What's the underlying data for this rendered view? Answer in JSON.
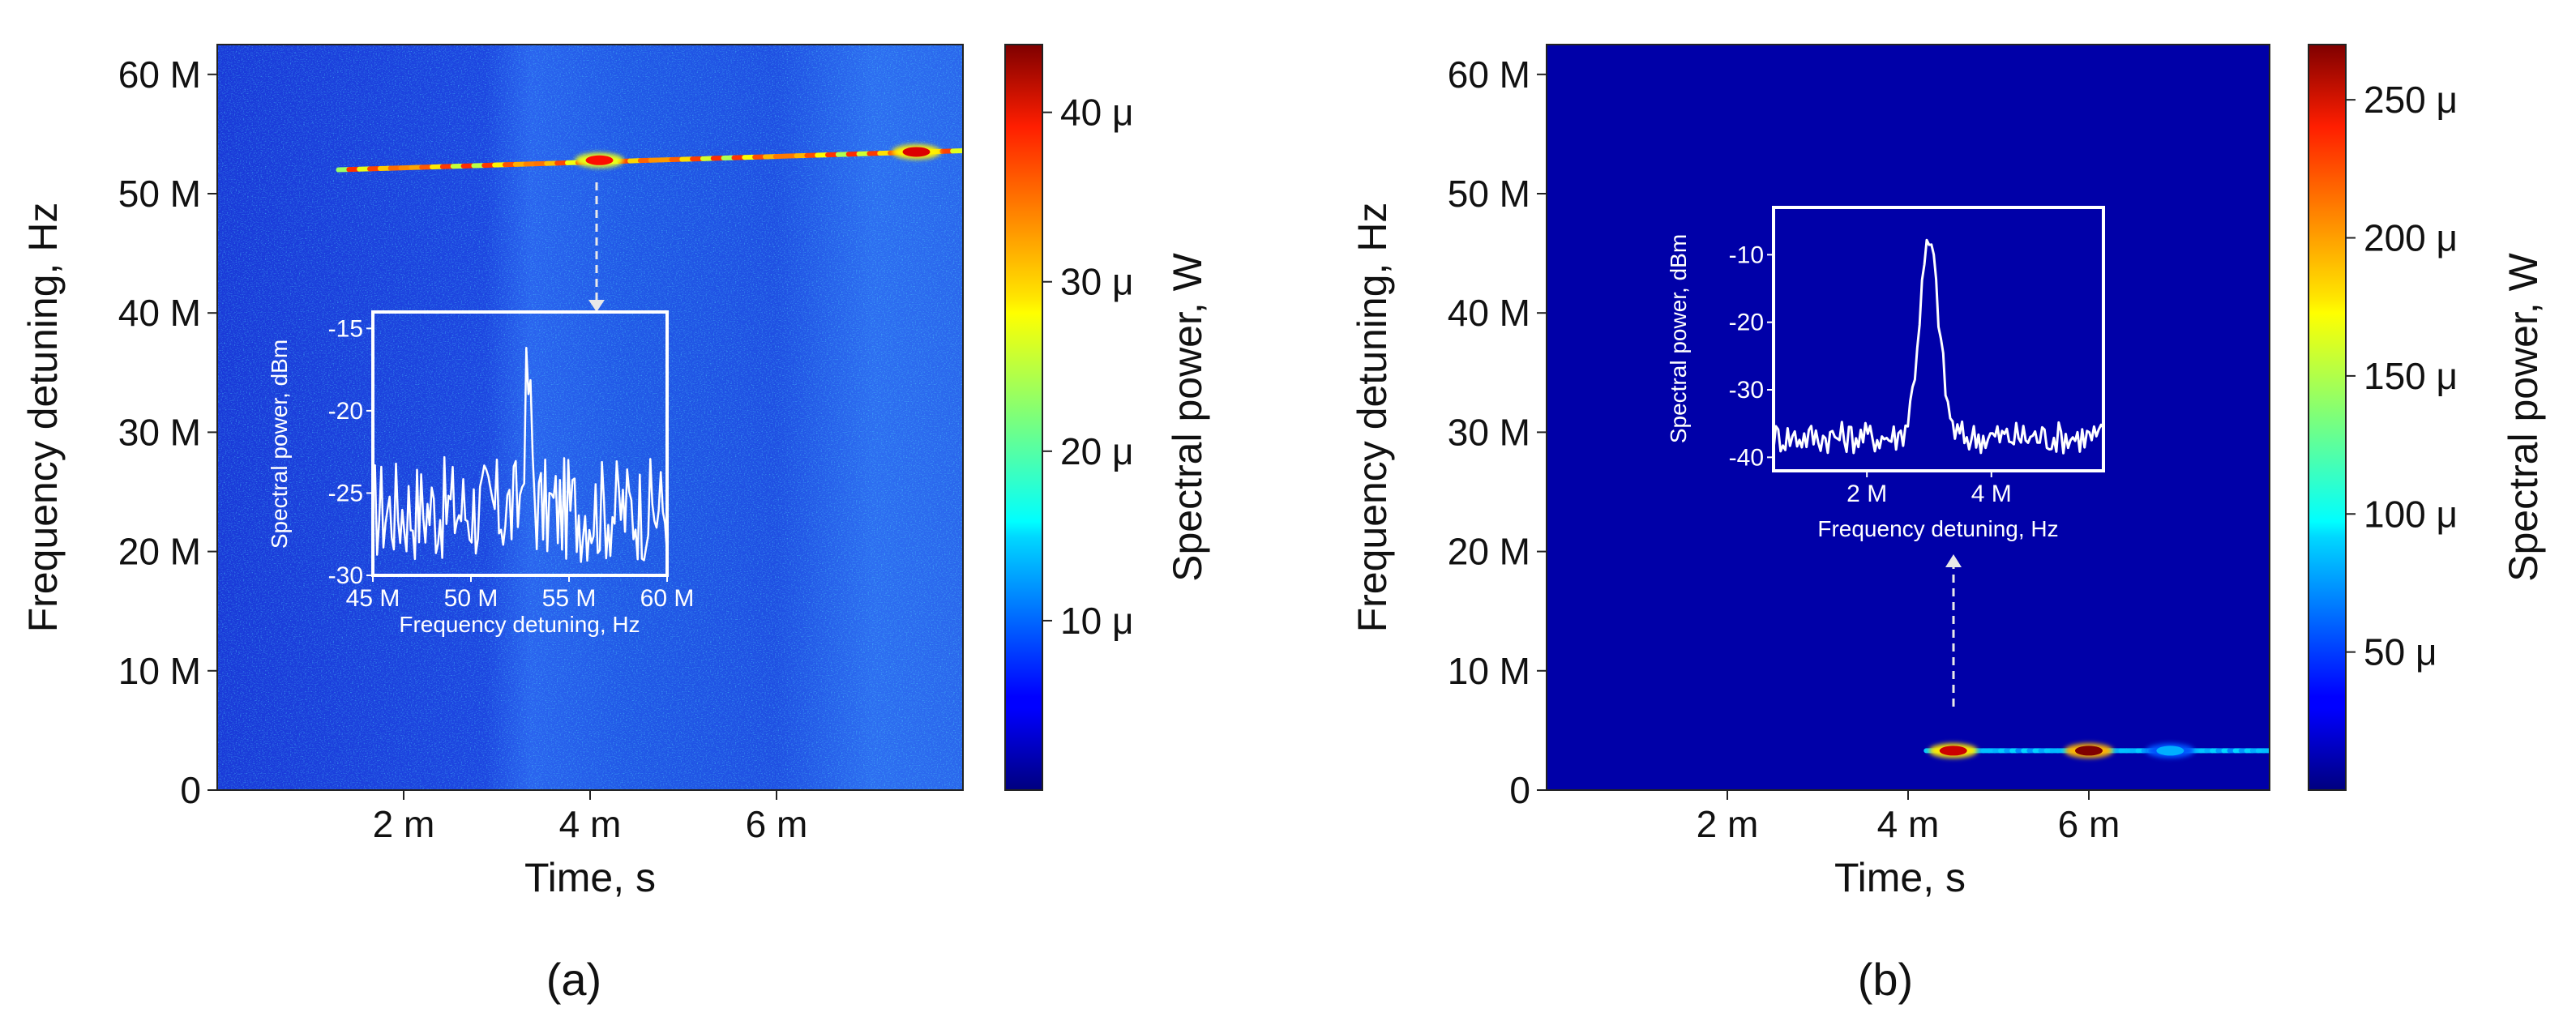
{
  "chart_data": [
    {
      "type": "heatmap",
      "panel_label": "(a)",
      "xlabel": "Time, s",
      "ylabel": "Frequency detuning, Hz",
      "colorbar_label": "Spectral power, W",
      "x_ticks": [
        "2 m",
        "4 m",
        "6 m"
      ],
      "x_tick_values": [
        0.002,
        0.004,
        0.006
      ],
      "xlim": [
        0,
        0.008
      ],
      "y_ticks": [
        "0",
        "10 M",
        "20 M",
        "30 M",
        "40 M",
        "50 M",
        "60 M"
      ],
      "y_tick_values": [
        0,
        10000000,
        20000000,
        30000000,
        40000000,
        50000000,
        60000000
      ],
      "ylim": [
        0,
        62500000
      ],
      "colorbar_ticks": [
        "10 μ",
        "20 μ",
        "30 μ",
        "40 μ"
      ],
      "colorbar_tick_values": [
        1e-05,
        2e-05,
        3e-05,
        4e-05
      ],
      "colorbar_range": [
        0,
        4.4e-05
      ],
      "colormap": "jet",
      "features": [
        {
          "kind": "line",
          "x_start": 0.0013,
          "x_end": 0.008,
          "y_start": 52000000,
          "y_end": 53600000,
          "power": 3e-05
        },
        {
          "kind": "hotspot",
          "x": 0.0041,
          "y": 52800000,
          "power": 3.8e-05
        },
        {
          "kind": "hotspot",
          "x": 0.0075,
          "y": 53500000,
          "power": 4e-05
        }
      ],
      "inset": {
        "type": "line",
        "xlabel": "Frequency detuning, Hz",
        "ylabel": "Spectral power, dBm",
        "x_ticks": [
          "45 M",
          "50 M",
          "55 M",
          "60 M"
        ],
        "x_tick_values": [
          45000000,
          50000000,
          55000000,
          60000000
        ],
        "xlim": [
          45000000,
          60000000
        ],
        "y_ticks": [
          "-15",
          "-20",
          "-25",
          "-30"
        ],
        "y_tick_values": [
          -15,
          -20,
          -25,
          -30
        ],
        "ylim": [
          -30,
          -14
        ],
        "peak": {
          "x": 52900000,
          "y": -18.3
        },
        "noise_floor": -26
      }
    },
    {
      "type": "heatmap",
      "panel_label": "(b)",
      "xlabel": "Time, s",
      "ylabel": "Frequency detuning, Hz",
      "colorbar_label": "Spectral power, W",
      "x_ticks": [
        "2 m",
        "4 m",
        "6 m"
      ],
      "x_tick_values": [
        0.002,
        0.004,
        0.006
      ],
      "xlim": [
        0,
        0.008
      ],
      "y_ticks": [
        "0",
        "10 M",
        "20 M",
        "30 M",
        "40 M",
        "50 M",
        "60 M"
      ],
      "y_tick_values": [
        0,
        10000000,
        20000000,
        30000000,
        40000000,
        50000000,
        60000000
      ],
      "ylim": [
        0,
        62500000
      ],
      "colorbar_ticks": [
        "50 μ",
        "100 μ",
        "150 μ",
        "200 μ",
        "250 μ"
      ],
      "colorbar_tick_values": [
        5e-05,
        0.0001,
        0.00015,
        0.0002,
        0.00025
      ],
      "colorbar_range": [
        0,
        0.00027
      ],
      "colormap": "jet",
      "features": [
        {
          "kind": "line",
          "x_start": 0.0042,
          "x_end": 0.008,
          "y_start": 3300000,
          "y_end": 3300000,
          "power": 5e-05
        },
        {
          "kind": "hotspot",
          "x": 0.0045,
          "y": 3300000,
          "power": 0.00025
        },
        {
          "kind": "hotspot",
          "x": 0.006,
          "y": 3300000,
          "power": 0.00027
        },
        {
          "kind": "hotspot",
          "x": 0.0069,
          "y": 3300000,
          "power": 8e-05
        }
      ],
      "inset": {
        "type": "line",
        "xlabel": "Frequency detuning, Hz",
        "ylabel": "Spectral power, dBm",
        "x_ticks": [
          "2 M",
          "4 M"
        ],
        "x_tick_values": [
          2000000,
          4000000
        ],
        "xlim": [
          500000,
          5800000
        ],
        "y_ticks": [
          "-10",
          "-20",
          "-30",
          "-40"
        ],
        "y_tick_values": [
          -10,
          -20,
          -30,
          -40
        ],
        "ylim": [
          -42,
          -3
        ],
        "peak": {
          "x": 3000000,
          "y": -8.5
        },
        "noise_floor": -37
      }
    }
  ]
}
